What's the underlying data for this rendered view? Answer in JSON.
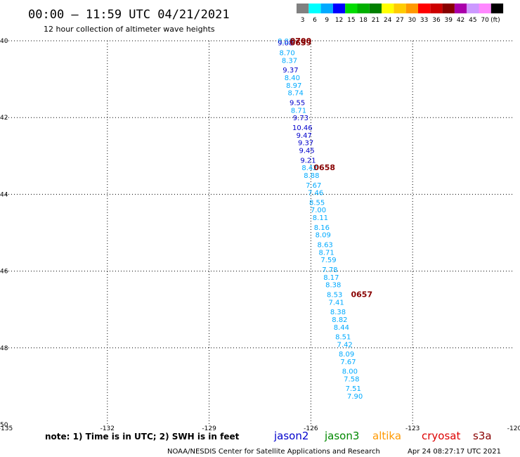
{
  "title": "00:00 – 11:59 UTC 04/21/2021",
  "subtitle": "12 hour collection of altimeter wave heights",
  "legend": {
    "unit": "(ft)",
    "bins": [
      {
        "label": "3",
        "color": "#808080"
      },
      {
        "label": "6",
        "color": "#00ffff"
      },
      {
        "label": "9",
        "color": "#00aaff"
      },
      {
        "label": "12",
        "color": "#0000ff"
      },
      {
        "label": "15",
        "color": "#00dd00"
      },
      {
        "label": "18",
        "color": "#00b000"
      },
      {
        "label": "21",
        "color": "#008000"
      },
      {
        "label": "24",
        "color": "#ffff00"
      },
      {
        "label": "27",
        "color": "#ffcc00"
      },
      {
        "label": "30",
        "color": "#ff9900"
      },
      {
        "label": "33",
        "color": "#ff0000"
      },
      {
        "label": "36",
        "color": "#cc0000"
      },
      {
        "label": "39",
        "color": "#880000"
      },
      {
        "label": "42",
        "color": "#aa00aa"
      },
      {
        "label": "45",
        "color": "#cc99ff"
      },
      {
        "label": "70",
        "color": "#ff88ff"
      },
      {
        "label": "",
        "color": "#000000"
      }
    ]
  },
  "axes": {
    "lon_range": [
      -135,
      -120
    ],
    "lat_range": [
      50,
      40
    ],
    "lon_ticks": [
      "-135",
      "-132",
      "-129",
      "-126",
      "-123",
      "-120"
    ],
    "lat_ticks": [
      "40",
      "42",
      "44",
      "46",
      "48",
      "50"
    ]
  },
  "colors": {
    "light_blue": "#00aaff",
    "dark_blue": "#0000cc",
    "clock_red": "#880000",
    "jason2": "#0000cc",
    "jason3": "#008800",
    "altika": "#ff9900",
    "cryosat": "#dd0000",
    "s3a": "#880000"
  },
  "chart_data": {
    "type": "scatter",
    "x_axis": "longitude",
    "y_axis": "latitude",
    "points": [
      {
        "lat": 40.0,
        "lon": -126.75,
        "value": "8.83",
        "color": "#00aaff"
      },
      {
        "lat": 40.05,
        "lon": -126.75,
        "value": "9.08",
        "color": "#0000cc"
      },
      {
        "lat": 40.3,
        "lon": -126.7,
        "value": "8.70",
        "color": "#00aaff"
      },
      {
        "lat": 40.5,
        "lon": -126.63,
        "value": "8.37",
        "color": "#00aaff"
      },
      {
        "lat": 40.75,
        "lon": -126.6,
        "value": "9.37",
        "color": "#0000cc"
      },
      {
        "lat": 40.95,
        "lon": -126.55,
        "value": "8.40",
        "color": "#00aaff"
      },
      {
        "lat": 41.15,
        "lon": -126.5,
        "value": "8.97",
        "color": "#00aaff"
      },
      {
        "lat": 41.35,
        "lon": -126.45,
        "value": "8.74",
        "color": "#00aaff"
      },
      {
        "lat": 41.6,
        "lon": -126.4,
        "value": "9.55",
        "color": "#0000cc"
      },
      {
        "lat": 41.8,
        "lon": -126.36,
        "value": "8.71",
        "color": "#00aaff"
      },
      {
        "lat": 42.0,
        "lon": -126.3,
        "value": "9.73",
        "color": "#0000cc"
      },
      {
        "lat": 42.25,
        "lon": -126.25,
        "value": "10.46",
        "color": "#0000cc"
      },
      {
        "lat": 42.45,
        "lon": -126.2,
        "value": "9.47",
        "color": "#0000cc"
      },
      {
        "lat": 42.65,
        "lon": -126.15,
        "value": "9.37",
        "color": "#0000cc"
      },
      {
        "lat": 42.85,
        "lon": -126.12,
        "value": "9.45",
        "color": "#0000cc"
      },
      {
        "lat": 43.1,
        "lon": -126.08,
        "value": "9.21",
        "color": "#0000cc"
      },
      {
        "lat": 43.3,
        "lon": -126.04,
        "value": "8.42",
        "color": "#00aaff"
      },
      {
        "lat": 43.5,
        "lon": -125.98,
        "value": "8.88",
        "color": "#00aaff"
      },
      {
        "lat": 43.75,
        "lon": -125.92,
        "value": "7.67",
        "color": "#00aaff"
      },
      {
        "lat": 43.95,
        "lon": -125.86,
        "value": "7.46",
        "color": "#00aaff"
      },
      {
        "lat": 44.2,
        "lon": -125.82,
        "value": "8.55",
        "color": "#00aaff"
      },
      {
        "lat": 44.4,
        "lon": -125.78,
        "value": "7.00",
        "color": "#00aaff"
      },
      {
        "lat": 44.6,
        "lon": -125.72,
        "value": "8.11",
        "color": "#00aaff"
      },
      {
        "lat": 44.85,
        "lon": -125.68,
        "value": "8.16",
        "color": "#00aaff"
      },
      {
        "lat": 45.05,
        "lon": -125.64,
        "value": "8.09",
        "color": "#00aaff"
      },
      {
        "lat": 45.3,
        "lon": -125.58,
        "value": "8.63",
        "color": "#00aaff"
      },
      {
        "lat": 45.5,
        "lon": -125.54,
        "value": "8.71",
        "color": "#00aaff"
      },
      {
        "lat": 45.7,
        "lon": -125.48,
        "value": "7.59",
        "color": "#00aaff"
      },
      {
        "lat": 45.95,
        "lon": -125.44,
        "value": "7.78",
        "color": "#00aaff"
      },
      {
        "lat": 46.15,
        "lon": -125.4,
        "value": "8.17",
        "color": "#00aaff"
      },
      {
        "lat": 46.35,
        "lon": -125.34,
        "value": "8.38",
        "color": "#00aaff"
      },
      {
        "lat": 46.6,
        "lon": -125.3,
        "value": "8.53",
        "color": "#00aaff"
      },
      {
        "lat": 46.8,
        "lon": -125.25,
        "value": "7.41",
        "color": "#00aaff"
      },
      {
        "lat": 47.05,
        "lon": -125.2,
        "value": "8.38",
        "color": "#00aaff"
      },
      {
        "lat": 47.25,
        "lon": -125.15,
        "value": "8.82",
        "color": "#00aaff"
      },
      {
        "lat": 47.45,
        "lon": -125.1,
        "value": "8.44",
        "color": "#00aaff"
      },
      {
        "lat": 47.7,
        "lon": -125.05,
        "value": "8.51",
        "color": "#00aaff"
      },
      {
        "lat": 47.9,
        "lon": -125.0,
        "value": "7.42",
        "color": "#00aaff"
      },
      {
        "lat": 48.15,
        "lon": -124.95,
        "value": "8.09",
        "color": "#00aaff"
      },
      {
        "lat": 48.35,
        "lon": -124.9,
        "value": "7.67",
        "color": "#00aaff"
      },
      {
        "lat": 48.6,
        "lon": -124.85,
        "value": "8.00",
        "color": "#00aaff"
      },
      {
        "lat": 48.8,
        "lon": -124.8,
        "value": "7.58",
        "color": "#00aaff"
      },
      {
        "lat": 49.05,
        "lon": -124.75,
        "value": "7.51",
        "color": "#00aaff"
      },
      {
        "lat": 49.25,
        "lon": -124.7,
        "value": "7.90",
        "color": "#00aaff"
      }
    ],
    "time_labels": [
      {
        "lat": 40.0,
        "lon": -126.3,
        "text": "0700",
        "color": "#880000"
      },
      {
        "lat": 40.05,
        "lon": -126.3,
        "text": "0659",
        "color": "#880000"
      },
      {
        "lat": 43.3,
        "lon": -125.6,
        "text": "0658",
        "color": "#880000"
      },
      {
        "lat": 46.6,
        "lon": -124.5,
        "text": "0657",
        "color": "#880000"
      }
    ]
  },
  "footer": {
    "note": "note: 1) Time is in UTC; 2) SWH is in feet",
    "satellites": [
      {
        "name": "jason2",
        "color": "#0000cc"
      },
      {
        "name": "jason3",
        "color": "#008800"
      },
      {
        "name": "altika",
        "color": "#ff9900"
      },
      {
        "name": "cryosat",
        "color": "#dd0000"
      },
      {
        "name": "s3a",
        "color": "#880000"
      }
    ],
    "credit": "NOAA/NESDIS Center for Satellite Applications and Research",
    "timestamp": "Apr 24 08:27:17 UTC 2021"
  }
}
